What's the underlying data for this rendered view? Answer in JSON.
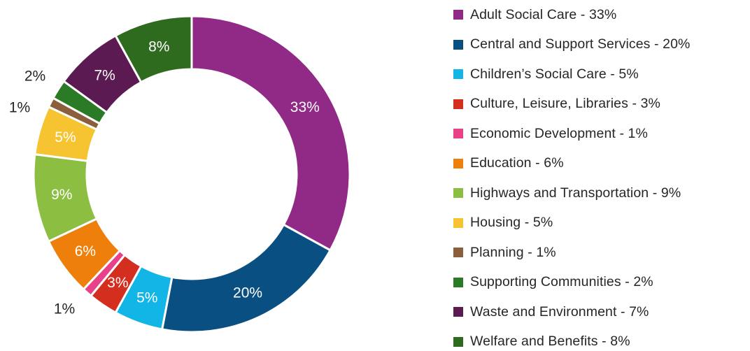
{
  "chart_data": {
    "type": "pie",
    "variant": "donut",
    "title": "",
    "legend_position": "right",
    "slices": [
      {
        "label": "Adult Social Care",
        "value": 33,
        "value_label": "33%",
        "legend": "Adult Social Care - 33%",
        "color": "#912A86",
        "label_placement": "inside",
        "label_color": "#ffffff"
      },
      {
        "label": "Central and Support Services",
        "value": 20,
        "value_label": "20%",
        "legend": "Central and Support Services - 20%",
        "color": "#0A4F82",
        "label_placement": "inside",
        "label_color": "#ffffff"
      },
      {
        "label": "Children’s Social Care",
        "value": 5,
        "value_label": "5%",
        "legend": "Children’s Social Care - 5%",
        "color": "#11B5E6",
        "label_placement": "inside",
        "label_color": "#ffffff"
      },
      {
        "label": "Culture, Leisure, Libraries",
        "value": 3,
        "value_label": "3%",
        "legend": "Culture, Leisure, Libraries - 3%",
        "color": "#D42E1E",
        "label_placement": "inside",
        "label_color": "#ffffff"
      },
      {
        "label": "Economic Development",
        "value": 1,
        "value_label": "1%",
        "legend": "Economic Development - 1%",
        "color": "#E8418A",
        "label_placement": "outside",
        "label_color": "#262626"
      },
      {
        "label": "Education",
        "value": 6,
        "value_label": "6%",
        "legend": "Education - 6%",
        "color": "#EE7F0A",
        "label_placement": "inside",
        "label_color": "#ffffff"
      },
      {
        "label": "Highways and Transportation",
        "value": 9,
        "value_label": "9%",
        "legend": "Highways and Transportation - 9%",
        "color": "#8CBE42",
        "label_placement": "inside",
        "label_color": "#ffffff"
      },
      {
        "label": "Housing",
        "value": 5,
        "value_label": "5%",
        "legend": "Housing - 5%",
        "color": "#F6C331",
        "label_placement": "inside",
        "label_color": "#ffffff"
      },
      {
        "label": "Planning",
        "value": 1,
        "value_label": "1%",
        "legend": "Planning - 1%",
        "color": "#8B5E3C",
        "label_placement": "outside",
        "label_color": "#262626"
      },
      {
        "label": "Supporting Communities",
        "value": 2,
        "value_label": "2%",
        "legend": "Supporting Communities - 2%",
        "color": "#2B7A25",
        "label_placement": "outside",
        "label_color": "#262626"
      },
      {
        "label": "Waste and Environment",
        "value": 7,
        "value_label": "7%",
        "legend": "Waste and Environment - 7%",
        "color": "#5C1A52",
        "label_placement": "inside",
        "label_color": "#ffffff"
      },
      {
        "label": "Welfare and Benefits",
        "value": 8,
        "value_label": "8%",
        "legend": "Welfare and Benefits - 8%",
        "color": "#2E6B1F",
        "label_placement": "inside",
        "label_color": "#ffffff"
      }
    ]
  }
}
